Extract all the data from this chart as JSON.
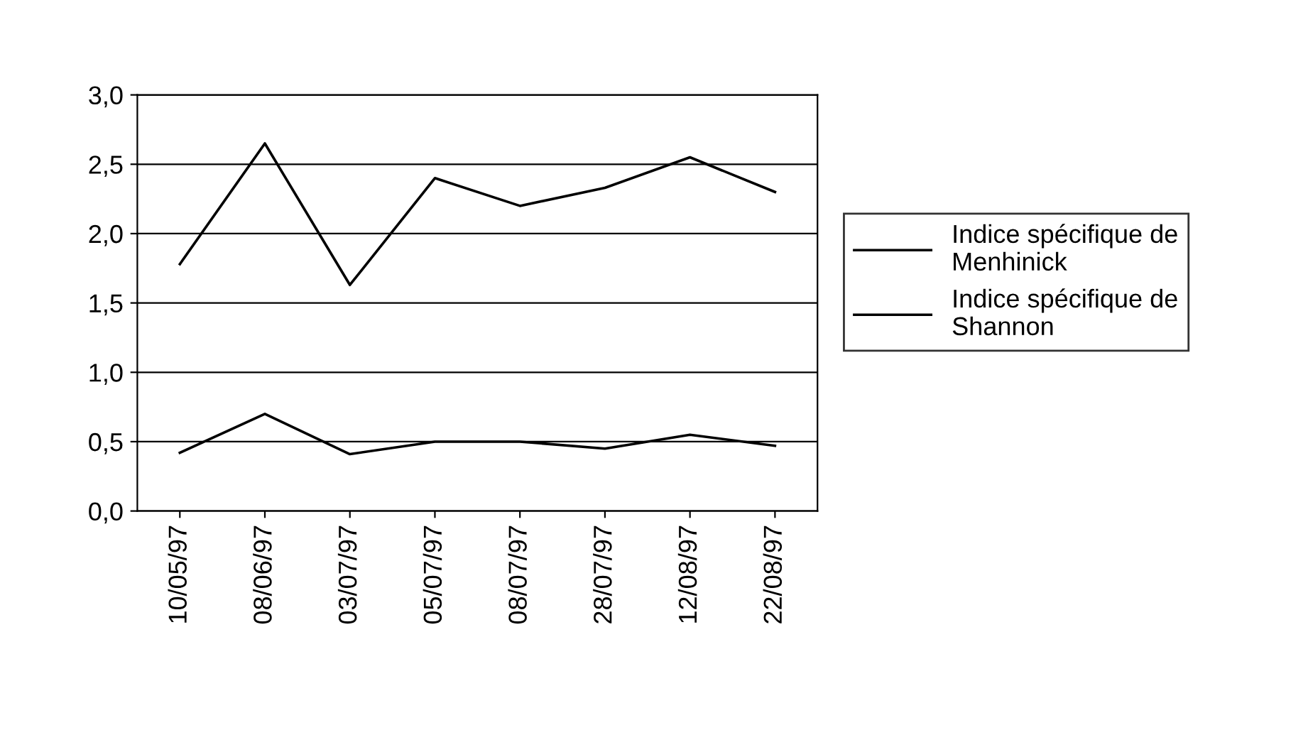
{
  "chart_data": {
    "type": "line",
    "categories": [
      "10/05/97",
      "08/06/97",
      "03/07/97",
      "05/07/97",
      "08/07/97",
      "28/07/97",
      "12/08/97",
      "22/08/97"
    ],
    "series": [
      {
        "name": "Indice spécifique de Menhinick",
        "color": "#000000",
        "values": [
          0.42,
          0.7,
          0.41,
          0.5,
          0.5,
          0.45,
          0.55,
          0.47
        ]
      },
      {
        "name": "Indice spécifique de Shannon",
        "color": "#000000",
        "values": [
          1.78,
          2.65,
          1.63,
          2.4,
          2.2,
          2.33,
          2.55,
          2.3
        ]
      }
    ],
    "ylim": [
      0,
      3
    ],
    "yticks": [
      {
        "value": 0,
        "label": "0,0"
      },
      {
        "value": 0.5,
        "label": "0,5"
      },
      {
        "value": 1,
        "label": "1,0"
      },
      {
        "value": 1.5,
        "label": "1,5"
      },
      {
        "value": 2,
        "label": "2,0"
      },
      {
        "value": 2.5,
        "label": "2,5"
      },
      {
        "value": 3,
        "label": "3,0"
      }
    ],
    "grid": "y",
    "legend": "right",
    "marker": "none",
    "line_style": "solid"
  }
}
